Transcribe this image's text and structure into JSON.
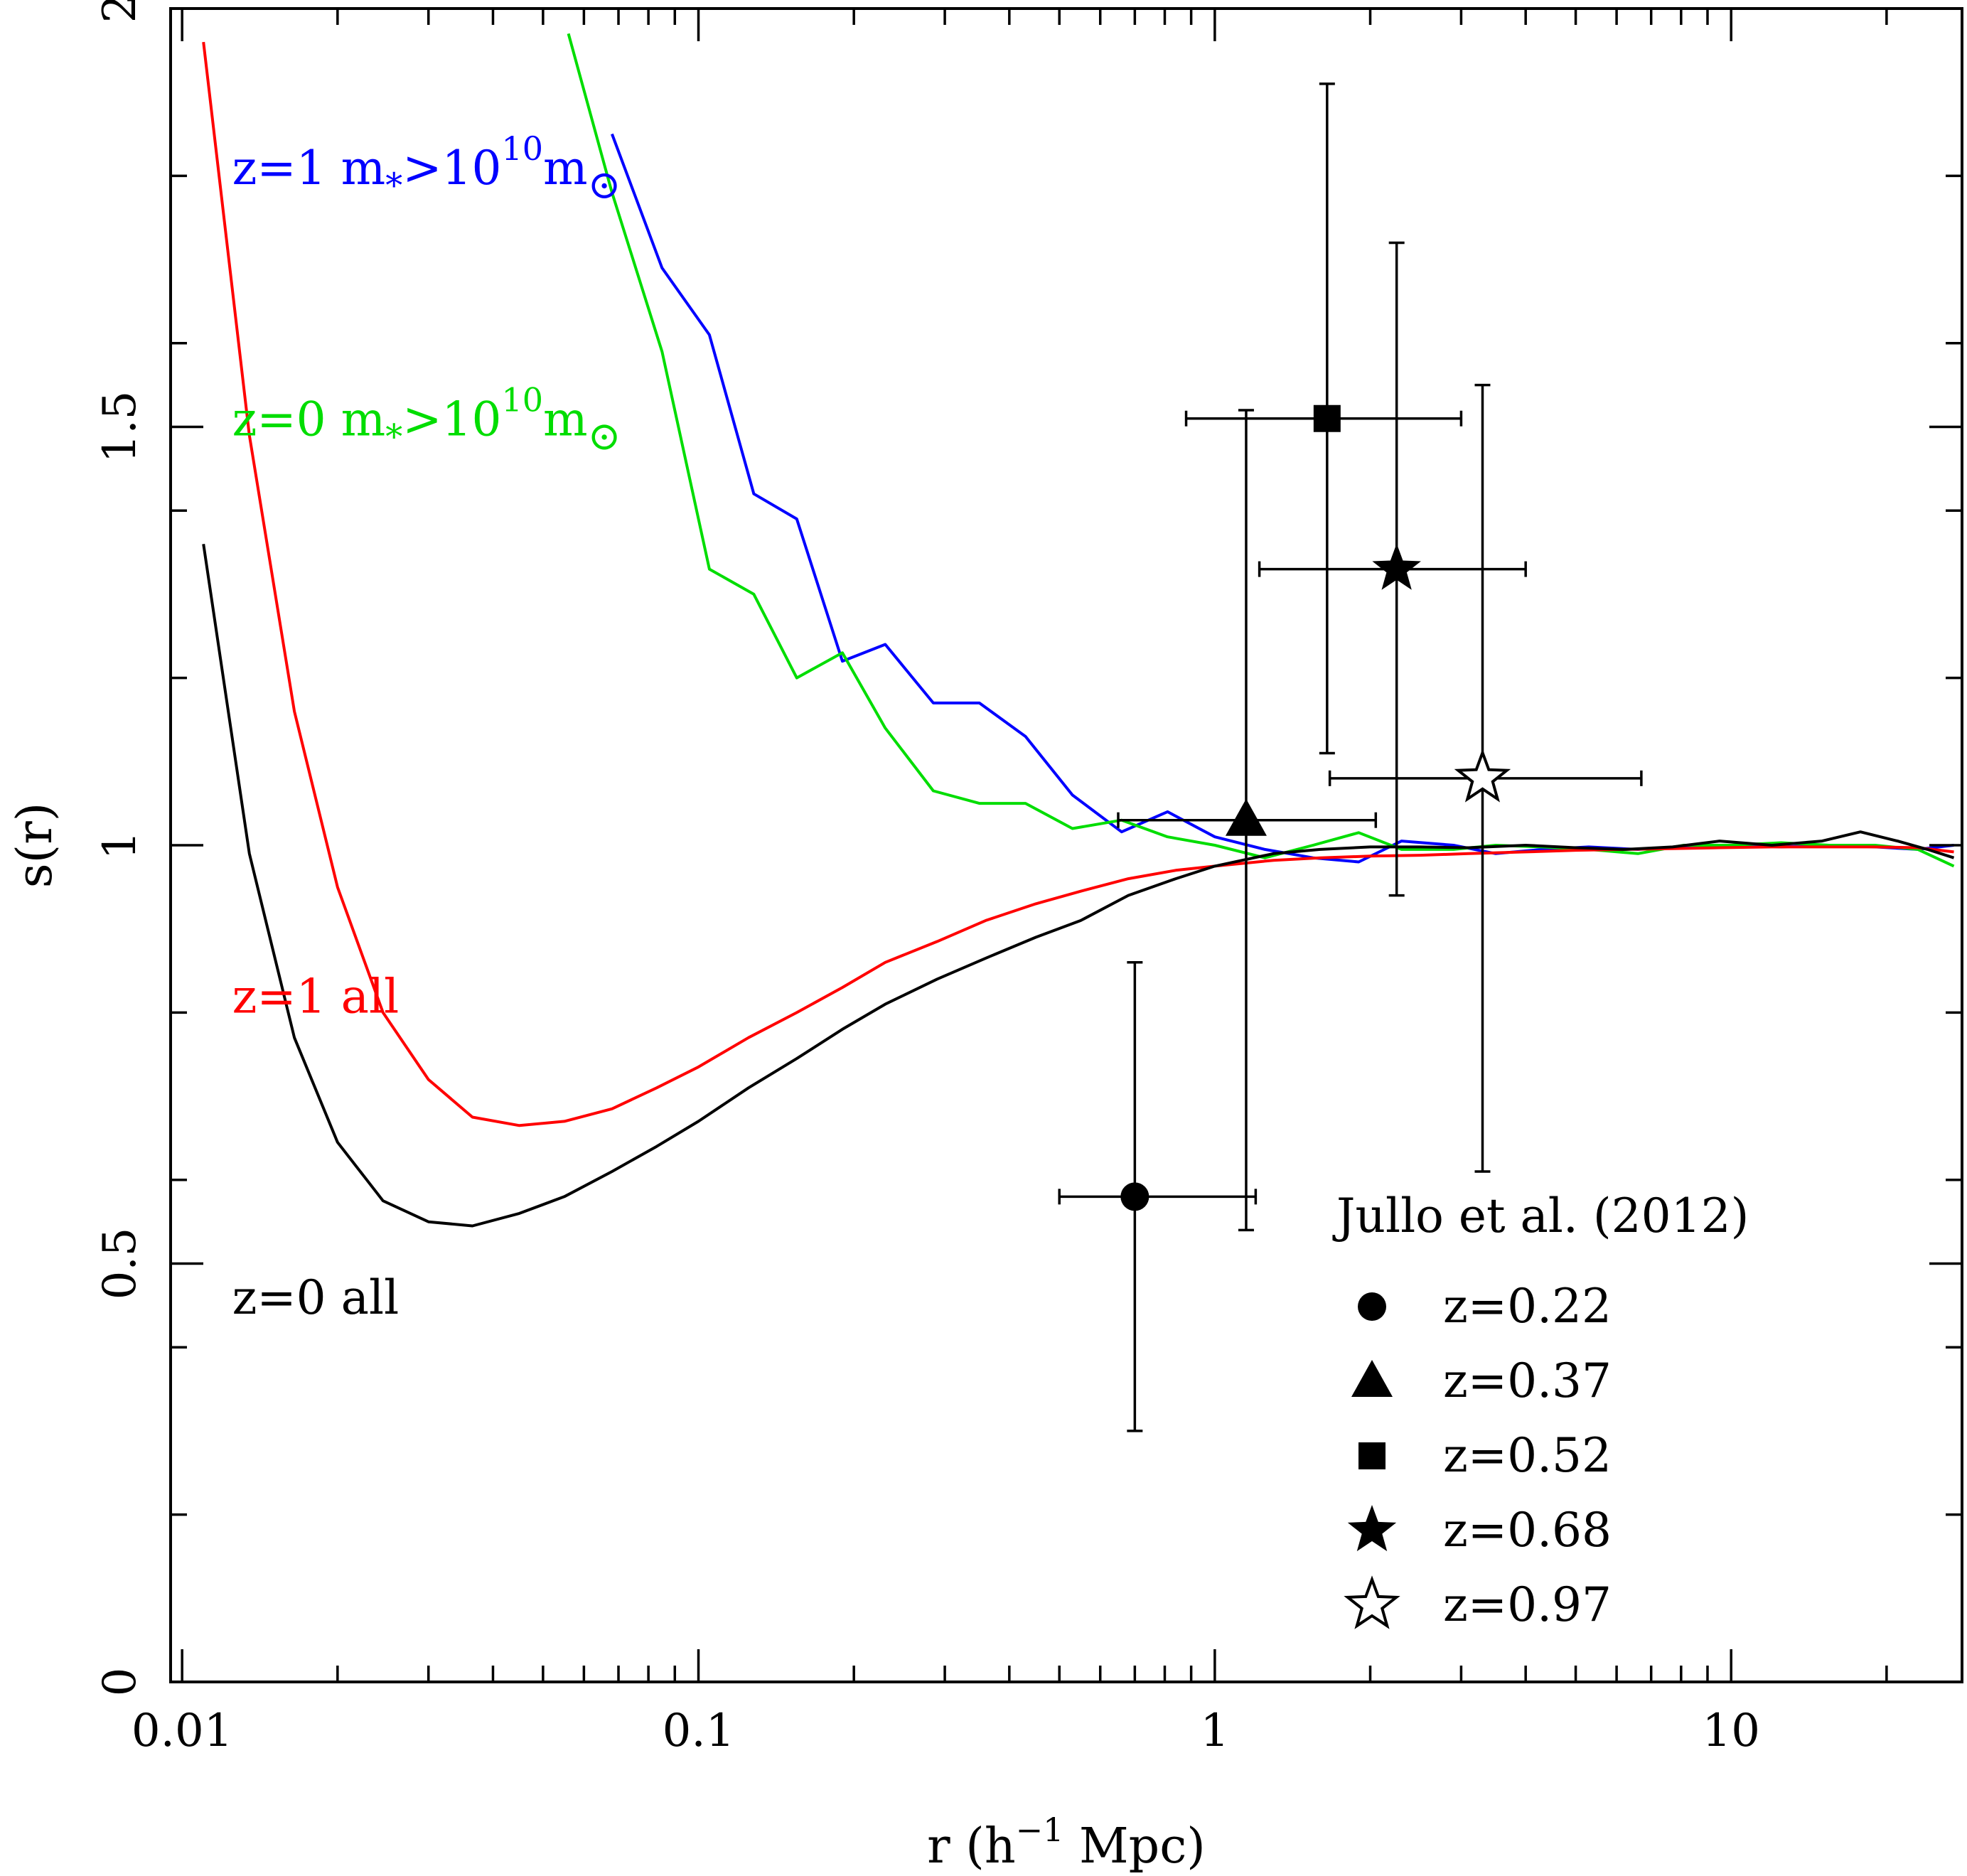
{
  "chart_data": {
    "type": "line",
    "title": "",
    "xlabel": "r (h^-1 Mpc)",
    "xlabel_parts": {
      "pre": "r (h",
      "sup": "−1",
      "post": " Mpc)"
    },
    "ylabel": "s(r)",
    "xscale": "log",
    "xlim": [
      0.0095,
      28
    ],
    "ylim": [
      0,
      2
    ],
    "xticks": [
      {
        "value": 0.01,
        "label": "0.01"
      },
      {
        "value": 0.1,
        "label": "0.1"
      },
      {
        "value": 1,
        "label": "1"
      },
      {
        "value": 10,
        "label": "10"
      }
    ],
    "yticks": [
      {
        "value": 0,
        "label": "0"
      },
      {
        "value": 0.5,
        "label": "0.5"
      },
      {
        "value": 1,
        "label": "1"
      },
      {
        "value": 1.5,
        "label": "1.5"
      },
      {
        "value": 2,
        "label": "2"
      }
    ],
    "series": [
      {
        "id": "z1-massive",
        "color": "#0000ff",
        "points": [
          [
            0.068,
            1.85
          ],
          [
            0.085,
            1.69
          ],
          [
            0.105,
            1.61
          ],
          [
            0.128,
            1.42
          ],
          [
            0.155,
            1.39
          ],
          [
            0.19,
            1.22
          ],
          [
            0.23,
            1.24
          ],
          [
            0.285,
            1.17
          ],
          [
            0.35,
            1.17
          ],
          [
            0.43,
            1.13
          ],
          [
            0.53,
            1.06
          ],
          [
            0.66,
            1.016
          ],
          [
            0.81,
            1.04
          ],
          [
            1.0,
            1.01
          ],
          [
            1.25,
            0.995
          ],
          [
            1.55,
            0.985
          ],
          [
            1.9,
            0.98
          ],
          [
            2.3,
            1.005
          ],
          [
            2.9,
            1.0
          ],
          [
            3.5,
            0.99
          ],
          [
            4.3,
            0.995
          ],
          [
            5.3,
            0.998
          ],
          [
            6.6,
            0.995
          ],
          [
            8.1,
            0.998
          ],
          [
            10,
            1.0
          ],
          [
            12.5,
            0.998
          ],
          [
            15.5,
            1.0
          ],
          [
            19,
            0.998
          ],
          [
            23,
            0.995
          ],
          [
            27,
            1.0
          ]
        ]
      },
      {
        "id": "z0-massive",
        "color": "#00dd00",
        "points": [
          [
            0.056,
            1.97
          ],
          [
            0.068,
            1.78
          ],
          [
            0.085,
            1.59
          ],
          [
            0.105,
            1.33
          ],
          [
            0.128,
            1.3
          ],
          [
            0.155,
            1.2
          ],
          [
            0.19,
            1.23
          ],
          [
            0.23,
            1.14
          ],
          [
            0.285,
            1.065
          ],
          [
            0.35,
            1.05
          ],
          [
            0.43,
            1.05
          ],
          [
            0.53,
            1.02
          ],
          [
            0.66,
            1.03
          ],
          [
            0.81,
            1.01
          ],
          [
            1.0,
            1.0
          ],
          [
            1.25,
            0.985
          ],
          [
            1.55,
            1.0
          ],
          [
            1.9,
            1.015
          ],
          [
            2.3,
            0.995
          ],
          [
            2.9,
            0.995
          ],
          [
            3.5,
            1.0
          ],
          [
            4.3,
            0.998
          ],
          [
            5.3,
            0.995
          ],
          [
            6.6,
            0.99
          ],
          [
            8.1,
            1.0
          ],
          [
            10,
            1.0
          ],
          [
            12.5,
            1.003
          ],
          [
            15.5,
            1.0
          ],
          [
            19,
            1.0
          ],
          [
            23,
            0.995
          ],
          [
            27,
            0.975
          ]
        ]
      },
      {
        "id": "z1-all",
        "color": "#ff0000",
        "points": [
          [
            0.011,
            1.96
          ],
          [
            0.0135,
            1.49
          ],
          [
            0.0165,
            1.16
          ],
          [
            0.02,
            0.95
          ],
          [
            0.0245,
            0.8
          ],
          [
            0.03,
            0.72
          ],
          [
            0.0365,
            0.675
          ],
          [
            0.045,
            0.665
          ],
          [
            0.055,
            0.67
          ],
          [
            0.068,
            0.685
          ],
          [
            0.083,
            0.71
          ],
          [
            0.1,
            0.735
          ],
          [
            0.125,
            0.77
          ],
          [
            0.155,
            0.8
          ],
          [
            0.19,
            0.83
          ],
          [
            0.23,
            0.86
          ],
          [
            0.29,
            0.885
          ],
          [
            0.36,
            0.91
          ],
          [
            0.45,
            0.93
          ],
          [
            0.55,
            0.945
          ],
          [
            0.68,
            0.96
          ],
          [
            0.84,
            0.97
          ],
          [
            1.0,
            0.975
          ],
          [
            1.3,
            0.982
          ],
          [
            1.6,
            0.985
          ],
          [
            2,
            0.987
          ],
          [
            2.5,
            0.988
          ],
          [
            3.1,
            0.99
          ],
          [
            4,
            0.992
          ],
          [
            5,
            0.994
          ],
          [
            6.2,
            0.995
          ],
          [
            7.7,
            0.996
          ],
          [
            9.5,
            0.997
          ],
          [
            12,
            0.998
          ],
          [
            15,
            0.998
          ],
          [
            19,
            0.998
          ],
          [
            23,
            0.997
          ],
          [
            27,
            0.992
          ]
        ]
      },
      {
        "id": "z0-all",
        "color": "#000000",
        "points": [
          [
            0.011,
            1.36
          ],
          [
            0.0135,
            0.99
          ],
          [
            0.0165,
            0.77
          ],
          [
            0.02,
            0.645
          ],
          [
            0.0245,
            0.575
          ],
          [
            0.03,
            0.55
          ],
          [
            0.0365,
            0.545
          ],
          [
            0.045,
            0.56
          ],
          [
            0.055,
            0.58
          ],
          [
            0.068,
            0.61
          ],
          [
            0.083,
            0.64
          ],
          [
            0.1,
            0.67
          ],
          [
            0.125,
            0.71
          ],
          [
            0.155,
            0.745
          ],
          [
            0.19,
            0.78
          ],
          [
            0.23,
            0.81
          ],
          [
            0.29,
            0.84
          ],
          [
            0.36,
            0.865
          ],
          [
            0.45,
            0.89
          ],
          [
            0.55,
            0.91
          ],
          [
            0.68,
            0.94
          ],
          [
            0.84,
            0.96
          ],
          [
            1.0,
            0.975
          ],
          [
            1.3,
            0.99
          ],
          [
            1.6,
            0.995
          ],
          [
            2,
            0.998
          ],
          [
            2.5,
            0.998
          ],
          [
            3.1,
            0.997
          ],
          [
            4,
            1.0
          ],
          [
            5,
            0.997
          ],
          [
            6.2,
            0.995
          ],
          [
            7.7,
            0.998
          ],
          [
            9.5,
            1.005
          ],
          [
            12,
            1.0
          ],
          [
            15,
            1.005
          ],
          [
            17.8,
            1.016
          ],
          [
            21,
            1.005
          ],
          [
            24,
            0.995
          ],
          [
            27,
            0.985
          ]
        ]
      }
    ],
    "curve_labels": [
      {
        "series": "z1-massive",
        "color": "#0000ff",
        "prefix": "z=1 m",
        "sub": "*",
        "mid": ">10",
        "sup": "10",
        "tail": "m",
        "tail_sub": "⊙",
        "x": 0.0125,
        "y": 1.79
      },
      {
        "series": "z0-massive",
        "color": "#00dd00",
        "prefix": "z=0 m",
        "sub": "*",
        "mid": ">10",
        "sup": "10",
        "tail": "m",
        "tail_sub": "⊙",
        "x": 0.0125,
        "y": 1.49
      },
      {
        "series": "z1-all",
        "color": "#ff0000",
        "text": "z=1 all",
        "x": 0.0125,
        "y": 0.8
      },
      {
        "series": "z0-all",
        "color": "#000000",
        "text": "z=0 all",
        "x": 0.0125,
        "y": 0.44
      }
    ],
    "observations": {
      "legend_title": "Jullo et al. (2012)",
      "points": [
        {
          "label": "z=0.22",
          "marker": "circle",
          "x": 0.7,
          "y": 0.58,
          "xerr": [
            0.5,
            1.2
          ],
          "yerr": [
            0.3,
            0.86
          ]
        },
        {
          "label": "z=0.37",
          "marker": "triangle",
          "x": 1.15,
          "y": 1.03,
          "xerr": [
            0.65,
            2.05
          ],
          "yerr": [
            0.54,
            1.52
          ]
        },
        {
          "label": "z=0.52",
          "marker": "square",
          "x": 1.65,
          "y": 1.51,
          "xerr": [
            0.88,
            3.0
          ],
          "yerr": [
            1.11,
            1.91
          ]
        },
        {
          "label": "z=0.68",
          "marker": "star-filled",
          "x": 2.25,
          "y": 1.33,
          "xerr": [
            1.22,
            4.0
          ],
          "yerr": [
            0.94,
            1.72
          ]
        },
        {
          "label": "z=0.97",
          "marker": "star-open",
          "x": 3.3,
          "y": 1.08,
          "xerr": [
            1.67,
            6.7
          ],
          "yerr": [
            0.61,
            1.55
          ]
        }
      ]
    },
    "grid": false,
    "legend_position": "bottom-right"
  }
}
